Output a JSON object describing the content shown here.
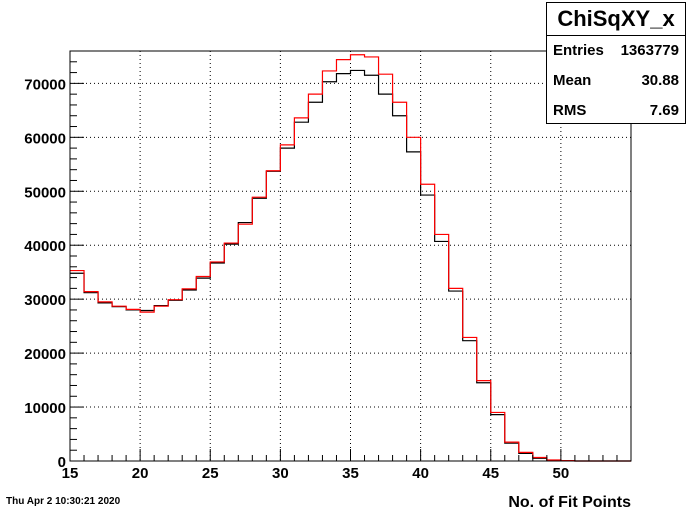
{
  "chart_data": {
    "type": "line",
    "title": "",
    "xlabel": "No. of Fit Points",
    "ylabel": "",
    "xlim": [
      15,
      55
    ],
    "ylim": [
      0,
      76000
    ],
    "x_ticks": [
      15,
      20,
      25,
      30,
      35,
      40,
      45,
      50
    ],
    "y_ticks": [
      0,
      10000,
      20000,
      30000,
      40000,
      50000,
      60000,
      70000
    ],
    "grid": true,
    "bin_edges": [
      15,
      16,
      17,
      18,
      19,
      20,
      21,
      22,
      23,
      24,
      25,
      26,
      27,
      28,
      29,
      30,
      31,
      32,
      33,
      34,
      35,
      36,
      37,
      38,
      39,
      40,
      41,
      42,
      43,
      44,
      45,
      46,
      47,
      48,
      49,
      50,
      51,
      52,
      53,
      54,
      55
    ],
    "series": [
      {
        "color": "#000000",
        "values": [
          34800,
          31200,
          29300,
          28600,
          28000,
          27900,
          28800,
          29800,
          31700,
          33900,
          36700,
          40200,
          44200,
          48700,
          53700,
          58000,
          62800,
          66500,
          70300,
          71800,
          72400,
          71500,
          68000,
          64000,
          57300,
          49300,
          40700,
          31500,
          22300,
          14500,
          8600,
          3300,
          1400,
          500,
          150,
          50,
          0,
          0,
          0,
          0
        ]
      },
      {
        "color": "#ff0000",
        "values": [
          35300,
          31400,
          29500,
          28700,
          28100,
          27600,
          28700,
          29900,
          31900,
          34200,
          36900,
          40400,
          43900,
          48900,
          53800,
          58600,
          63600,
          68000,
          72300,
          74400,
          75300,
          74900,
          71700,
          66500,
          60000,
          51300,
          42000,
          32000,
          22900,
          14900,
          9000,
          3500,
          1600,
          650,
          200,
          70,
          0,
          0,
          0,
          0
        ]
      }
    ]
  },
  "stats_box": {
    "title": "ChiSqXY_x",
    "entries_label": "Entries",
    "entries_value": "1363779",
    "mean_label": "Mean",
    "mean_value": "30.88",
    "rms_label": "RMS",
    "rms_value": "7.69"
  },
  "footer": {
    "date_stamp": "Thu Apr  2 10:30:21 2020"
  }
}
